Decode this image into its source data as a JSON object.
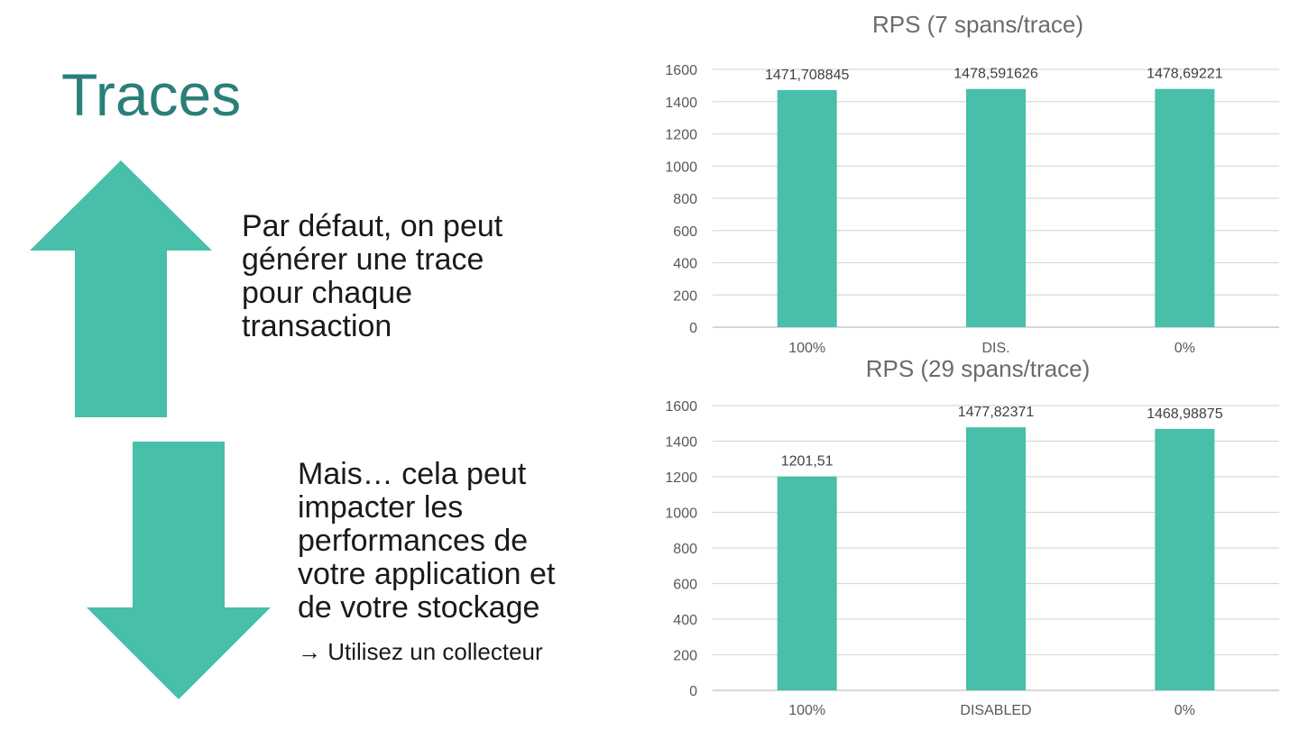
{
  "slide": {
    "title": "Traces",
    "up_text_lines": [
      "Par défaut, on peut",
      "générer une trace",
      "pour chaque",
      "transaction"
    ],
    "down_text_lines": [
      "Mais… cela peut",
      "impacter les",
      "performances de",
      "votre application et",
      "de votre stockage"
    ],
    "hint": "→ Utilisez un collecteur",
    "accent_color": "#47bfa9",
    "title_color": "#2a7f79"
  },
  "chart_data": [
    {
      "type": "bar",
      "title": "RPS (7 spans/trace)",
      "categories": [
        "100%",
        "DIS.",
        "0%"
      ],
      "values": [
        1471.708845,
        1478.591626,
        1478.69221
      ],
      "data_labels": [
        "1471,708845",
        "1478,591626",
        "1478,69221"
      ],
      "ylim": [
        0,
        1600
      ],
      "yticks": [
        0,
        200,
        400,
        600,
        800,
        1000,
        1200,
        1400,
        1600
      ],
      "grid": true,
      "color": "#47bfa9"
    },
    {
      "type": "bar",
      "title": "RPS (29 spans/trace)",
      "categories": [
        "100%",
        "DISABLED",
        "0%"
      ],
      "values": [
        1201.51,
        1477.82371,
        1468.98875
      ],
      "data_labels": [
        "1201,51",
        "1477,82371",
        "1468,98875"
      ],
      "ylim": [
        0,
        1600
      ],
      "yticks": [
        0,
        200,
        400,
        600,
        800,
        1000,
        1200,
        1400,
        1600
      ],
      "grid": true,
      "color": "#47bfa9"
    }
  ]
}
